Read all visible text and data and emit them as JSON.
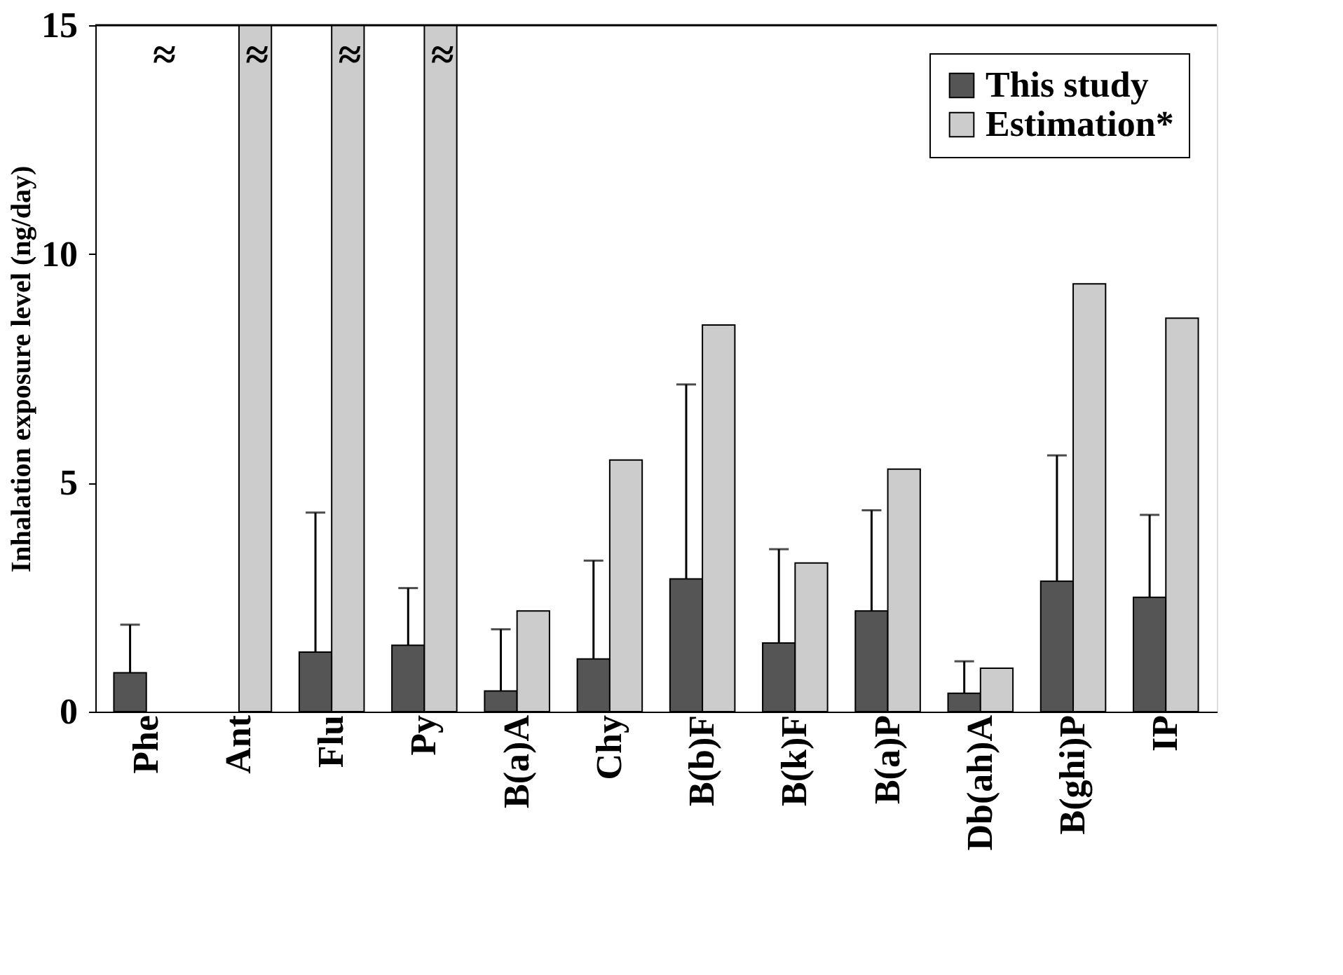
{
  "chart_data": {
    "type": "bar",
    "ylabel": "Inhalation exposure level (ng/day)",
    "categories": [
      "Phe",
      "Ant",
      "Flu",
      "Py",
      "B(a)A",
      "Chy",
      "B(b)F",
      "B(k)F",
      "B(a)P",
      "Db(ah)A",
      "B(ghi)P",
      "IP"
    ],
    "series": [
      {
        "name": "This study",
        "color": "#555555",
        "values": [
          0.85,
          null,
          1.3,
          1.45,
          0.45,
          1.15,
          2.9,
          1.5,
          2.2,
          0.4,
          2.85,
          2.5
        ],
        "errors": [
          [
            0.85,
            1.9
          ],
          null,
          [
            1.3,
            4.35
          ],
          [
            1.45,
            2.7
          ],
          [
            0.45,
            1.8
          ],
          [
            1.15,
            3.3
          ],
          [
            2.9,
            7.15
          ],
          [
            1.5,
            3.55
          ],
          [
            2.2,
            4.4
          ],
          [
            0.4,
            1.1
          ],
          [
            2.85,
            5.6
          ],
          [
            2.5,
            4.3
          ]
        ]
      },
      {
        "name": "Estimation*",
        "color": "#cccccc",
        "values": [
          null,
          15,
          15,
          15,
          2.2,
          5.5,
          8.45,
          3.25,
          5.3,
          0.95,
          9.35,
          8.6
        ]
      }
    ],
    "annotations": [
      "≈",
      "≈",
      "≈",
      "≈"
    ],
    "ylim": [
      0,
      15
    ],
    "yticks": [
      0,
      5,
      10,
      15
    ],
    "legend": "top right",
    "grid": false
  }
}
